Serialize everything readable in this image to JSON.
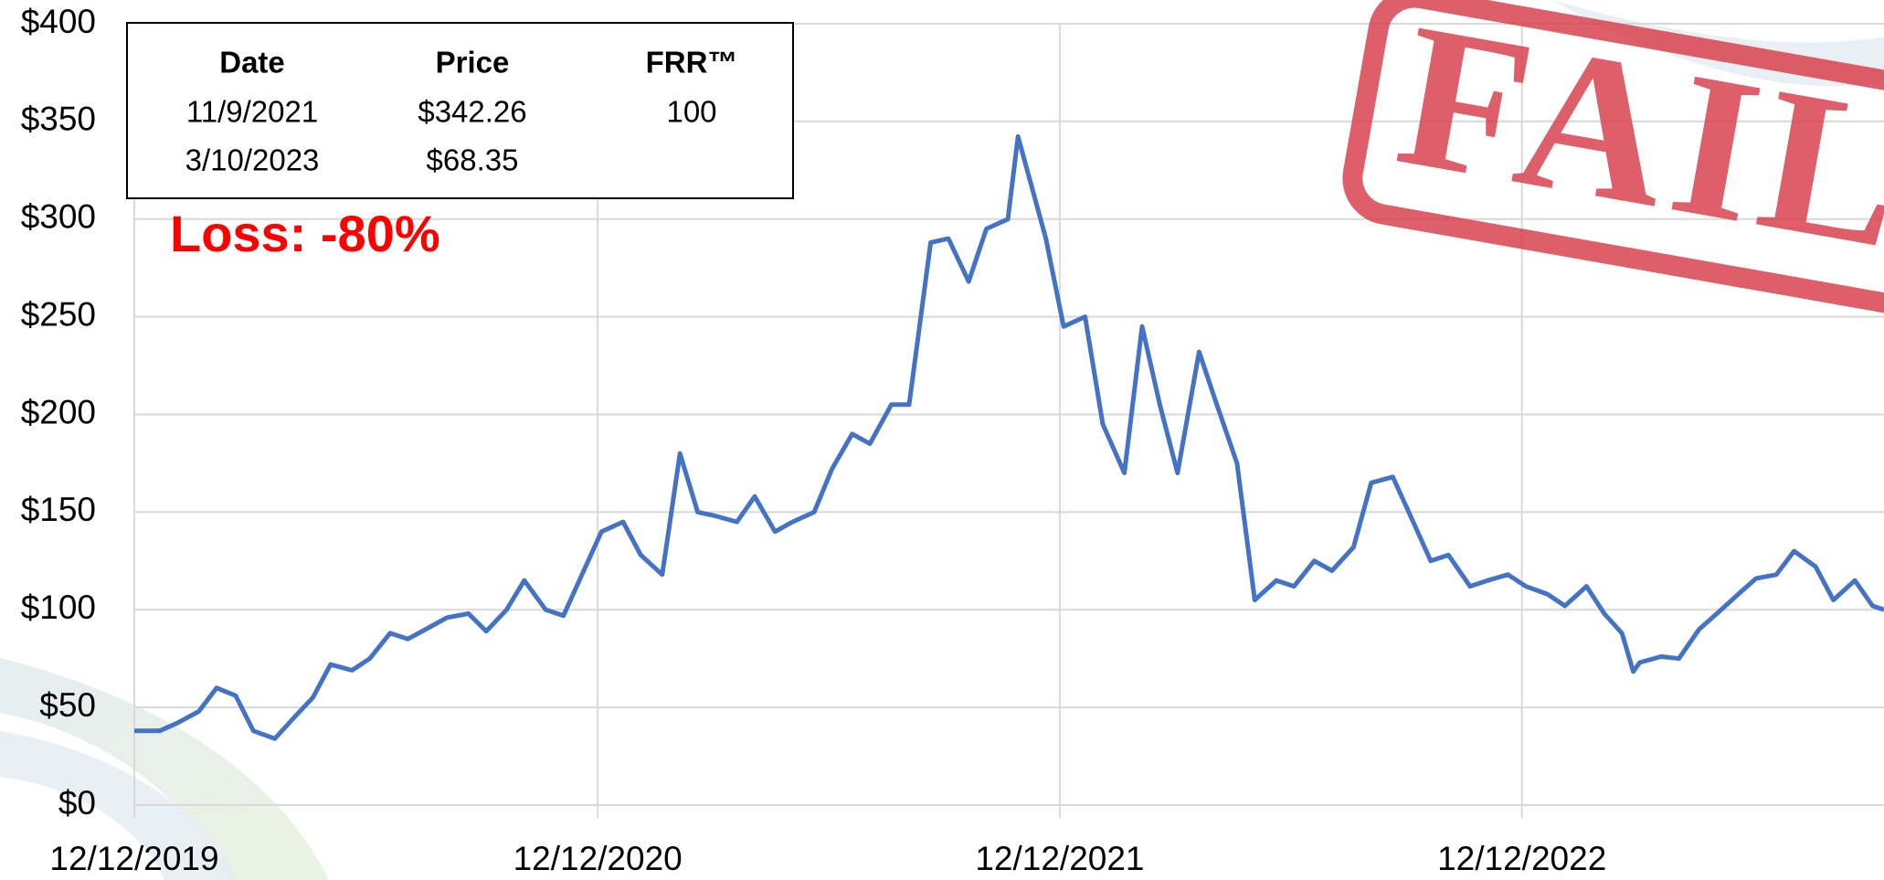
{
  "chart_data": {
    "type": "line",
    "color": "#4472c4",
    "grid": true,
    "xlim": [
      "12/12/2019",
      "9/24/2023"
    ],
    "xticks": [
      "12/12/2019",
      "12/12/2020",
      "12/12/2021",
      "12/12/2022"
    ],
    "ylim": [
      0,
      400
    ],
    "yticks": [
      {
        "value": 0,
        "label": "$0"
      },
      {
        "value": 50,
        "label": "$50"
      },
      {
        "value": 100,
        "label": "$100"
      },
      {
        "value": 150,
        "label": "$150"
      },
      {
        "value": 200,
        "label": "$200"
      },
      {
        "value": 250,
        "label": "$250"
      },
      {
        "value": 300,
        "label": "$300"
      },
      {
        "value": 350,
        "label": "$350"
      },
      {
        "value": 400,
        "label": "$400"
      }
    ],
    "x": [
      "12/12/2019",
      "1/1/2020",
      "1/15/2020",
      "2/1/2020",
      "2/15/2020",
      "3/1/2020",
      "3/15/2020",
      "4/1/2020",
      "4/15/2020",
      "5/1/2020",
      "5/15/2020",
      "6/1/2020",
      "6/15/2020",
      "7/1/2020",
      "7/15/2020",
      "8/1/2020",
      "8/15/2020",
      "9/1/2020",
      "9/15/2020",
      "10/1/2020",
      "10/15/2020",
      "11/1/2020",
      "11/15/2020",
      "12/1/2020",
      "12/15/2020",
      "1/1/2021",
      "1/15/2021",
      "2/1/2021",
      "2/15/2021",
      "3/1/2021",
      "3/15/2021",
      "4/1/2021",
      "4/15/2021",
      "5/1/2021",
      "5/15/2021",
      "6/1/2021",
      "6/15/2021",
      "7/1/2021",
      "7/15/2021",
      "8/1/2021",
      "8/15/2021",
      "9/1/2021",
      "9/15/2021",
      "10/1/2021",
      "10/15/2021",
      "11/1/2021",
      "11/9/2021",
      "11/15/2021",
      "12/1/2021",
      "12/15/2021",
      "1/1/2022",
      "1/15/2022",
      "2/1/2022",
      "2/15/2022",
      "3/1/2022",
      "3/15/2022",
      "4/1/2022",
      "4/15/2022",
      "5/1/2022",
      "5/15/2022",
      "6/1/2022",
      "6/15/2022",
      "7/1/2022",
      "7/15/2022",
      "8/1/2022",
      "8/15/2022",
      "9/1/2022",
      "9/15/2022",
      "10/1/2022",
      "10/15/2022",
      "11/1/2022",
      "11/15/2022",
      "12/1/2022",
      "12/15/2022",
      "1/1/2023",
      "1/15/2023",
      "2/1/2023",
      "2/15/2023",
      "3/1/2023",
      "3/10/2023",
      "3/15/2023",
      "4/1/2023",
      "4/15/2023",
      "5/1/2023",
      "5/15/2023",
      "6/1/2023",
      "6/15/2023",
      "7/1/2023",
      "7/15/2023",
      "8/1/2023",
      "8/15/2023",
      "9/1/2023",
      "9/15/2023",
      "9/24/2023"
    ],
    "values": [
      38,
      38,
      42,
      48,
      60,
      56,
      38,
      34,
      44,
      55,
      72,
      69,
      75,
      88,
      85,
      91,
      96,
      98,
      89,
      100,
      115,
      100,
      97,
      120,
      140,
      145,
      128,
      118,
      180,
      150,
      148,
      145,
      158,
      140,
      145,
      150,
      172,
      190,
      185,
      205,
      205,
      288,
      290,
      268,
      295,
      300,
      342.26,
      328,
      290,
      245,
      250,
      195,
      170,
      245,
      205,
      170,
      232,
      205,
      175,
      105,
      115,
      112,
      125,
      120,
      132,
      165,
      168,
      148,
      125,
      128,
      112,
      115,
      118,
      112,
      108,
      102,
      112,
      98,
      88,
      68.35,
      73,
      76,
      75,
      90,
      98,
      108,
      116,
      118,
      130,
      122,
      105,
      115,
      102,
      100
    ],
    "annotations": {
      "loss": "Loss: -80%",
      "stamp": "FAIL"
    }
  },
  "table": {
    "header": [
      "Date",
      "Price",
      "FRR™"
    ],
    "rows": [
      [
        "11/9/2021",
        "$342.26",
        "100"
      ],
      [
        "3/10/2023",
        "$68.35"
      ]
    ]
  }
}
